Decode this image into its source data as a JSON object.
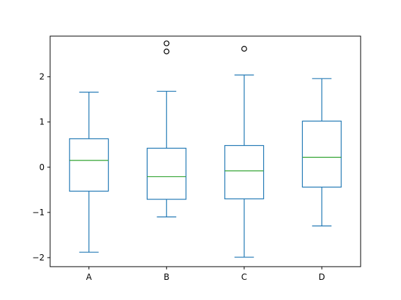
{
  "chart_data": {
    "type": "box",
    "title": "",
    "xlabel": "",
    "ylabel": "",
    "categories": [
      "A",
      "B",
      "C",
      "D"
    ],
    "ylim": [
      -2.2,
      2.9
    ],
    "yticks": [
      -2,
      -1,
      0,
      1,
      2
    ],
    "ytick_labels": [
      "−2",
      "−1",
      "0",
      "1",
      "2"
    ],
    "grid": false,
    "boxes": [
      {
        "label": "A",
        "whisker_low": -1.88,
        "q1": -0.53,
        "median": 0.15,
        "q3": 0.63,
        "whisker_high": 1.66,
        "outliers": []
      },
      {
        "label": "B",
        "whisker_low": -1.1,
        "q1": -0.71,
        "median": -0.21,
        "q3": 0.42,
        "whisker_high": 1.68,
        "outliers": [
          2.56,
          2.74
        ]
      },
      {
        "label": "C",
        "whisker_low": -1.99,
        "q1": -0.7,
        "median": -0.08,
        "q3": 0.48,
        "whisker_high": 2.04,
        "outliers": [
          2.62
        ]
      },
      {
        "label": "D",
        "whisker_low": -1.3,
        "q1": -0.44,
        "median": 0.22,
        "q3": 1.02,
        "whisker_high": 1.96,
        "outliers": []
      }
    ],
    "colors": {
      "box": "#1f77b4",
      "median": "#2ca02c",
      "outlier": "#000000",
      "axes": "#000000"
    }
  }
}
